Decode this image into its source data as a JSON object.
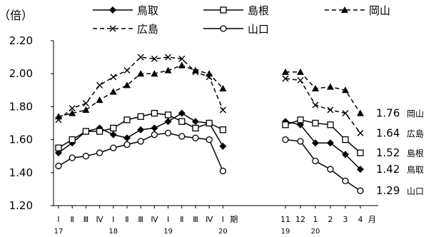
{
  "chart_data": {
    "type": "line",
    "yunit": "（倍）",
    "ylim": [
      1.2,
      2.2
    ],
    "yticks": [
      "1.20",
      "1.40",
      "1.60",
      "1.80",
      "2.00",
      "2.20"
    ],
    "quarter_labels": [
      "Ⅰ",
      "Ⅱ",
      "Ⅲ",
      "Ⅳ",
      "Ⅰ",
      "Ⅱ",
      "Ⅲ",
      "Ⅳ",
      "Ⅰ",
      "Ⅱ",
      "Ⅲ",
      "Ⅳ",
      "Ⅰ"
    ],
    "quarter_suffix": "期",
    "quarter_years": [
      {
        "label": "17",
        "index": 0
      },
      {
        "label": "18",
        "index": 4
      },
      {
        "label": "19",
        "index": 8
      },
      {
        "label": "20",
        "index": 12
      }
    ],
    "month_labels": [
      "11",
      "12",
      "1",
      "2",
      "3",
      "4"
    ],
    "month_suffix": "月",
    "month_years": [
      {
        "label": "19",
        "index": 0
      },
      {
        "label": "20",
        "index": 2
      }
    ],
    "legend": {
      "position": "top"
    },
    "series": [
      {
        "name": "鳥取",
        "marker": "diamond",
        "line": "solid",
        "color": "#000000",
        "quarterly": [
          1.52,
          1.58,
          1.65,
          1.67,
          1.63,
          1.61,
          1.66,
          1.67,
          1.71,
          1.76,
          1.71,
          1.7,
          1.56
        ],
        "monthly": [
          1.71,
          1.69,
          1.58,
          1.58,
          1.51,
          1.42
        ],
        "end_value": "1.42"
      },
      {
        "name": "島根",
        "marker": "square",
        "line": "solid",
        "color": "#000000",
        "quarterly": [
          1.55,
          1.6,
          1.65,
          1.65,
          1.67,
          1.72,
          1.74,
          1.76,
          1.75,
          1.71,
          1.67,
          1.7,
          1.66
        ],
        "monthly": [
          1.69,
          1.72,
          1.7,
          1.69,
          1.6,
          1.52
        ],
        "end_value": "1.52"
      },
      {
        "name": "岡山",
        "marker": "triangle",
        "line": "dashed",
        "color": "#000000",
        "quarterly": [
          1.74,
          1.76,
          1.78,
          1.84,
          1.89,
          1.93,
          2.0,
          2.0,
          2.02,
          2.05,
          2.02,
          2.0,
          1.91
        ],
        "monthly": [
          2.01,
          2.01,
          1.91,
          1.92,
          1.9,
          1.76
        ],
        "end_value": "1.76"
      },
      {
        "name": "広島",
        "marker": "x",
        "line": "dashed",
        "color": "#000000",
        "quarterly": [
          1.72,
          1.79,
          1.82,
          1.93,
          1.98,
          2.02,
          2.1,
          2.09,
          2.1,
          2.09,
          2.01,
          1.98,
          1.78
        ],
        "monthly": [
          1.97,
          1.96,
          1.81,
          1.78,
          1.76,
          1.64
        ],
        "end_value": "1.64"
      },
      {
        "name": "山口",
        "marker": "circle",
        "line": "solid",
        "color": "#000000",
        "quarterly": [
          1.44,
          1.49,
          1.5,
          1.52,
          1.55,
          1.57,
          1.59,
          1.63,
          1.64,
          1.62,
          1.61,
          1.6,
          1.41
        ],
        "monthly": [
          1.6,
          1.59,
          1.47,
          1.42,
          1.35,
          1.29
        ],
        "end_value": "1.29"
      }
    ]
  }
}
